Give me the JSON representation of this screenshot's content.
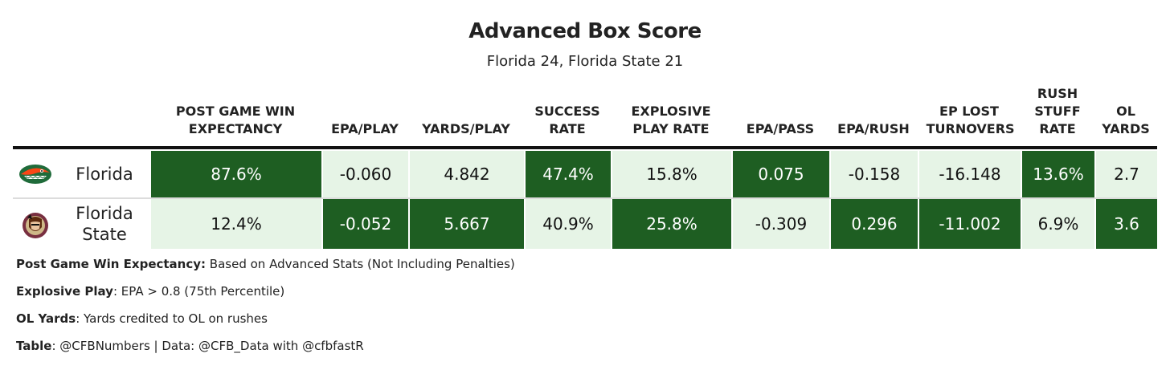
{
  "title": "Advanced Box Score",
  "subtitle": "Florida 24, Florida State 21",
  "colors": {
    "dark_cell": "#1e5e22",
    "light_cell": "#e6f4e6",
    "rule": "#111111"
  },
  "chart_data": {
    "type": "table",
    "columns": [
      "POST GAME WIN EXPECTANCY",
      "EPA/PLAY",
      "YARDS/PLAY",
      "SUCCESS RATE",
      "EXPLOSIVE PLAY RATE",
      "EPA/PASS",
      "EPA/RUSH",
      "EP LOST TURNOVERS",
      "RUSH STUFF RATE",
      "OL YARDS"
    ],
    "rows": [
      {
        "team": "Florida",
        "logo": "florida-gators-logo-icon",
        "values": [
          "87.6%",
          "-0.060",
          "4.842",
          "47.4%",
          "15.8%",
          "0.075",
          "-0.158",
          "-16.148",
          "13.6%",
          "2.7"
        ],
        "highlight": [
          true,
          false,
          false,
          true,
          false,
          true,
          false,
          false,
          true,
          false
        ]
      },
      {
        "team": "Florida State",
        "logo": "florida-state-seminoles-logo-icon",
        "values": [
          "12.4%",
          "-0.052",
          "5.667",
          "40.9%",
          "25.8%",
          "-0.309",
          "0.296",
          "-11.002",
          "6.9%",
          "3.6"
        ],
        "highlight": [
          false,
          true,
          true,
          false,
          true,
          false,
          true,
          true,
          false,
          true
        ]
      }
    ]
  },
  "notes": [
    {
      "label": "Post Game Win Expectancy:",
      "text": " Based on Advanced Stats (Not Including Penalties)"
    },
    {
      "label": "Explosive Play",
      "text": ": EPA > 0.8 (75th Percentile)"
    },
    {
      "label": "OL Yards",
      "text": ": Yards credited to OL on rushes"
    },
    {
      "label": "Table",
      "text": ": @CFBNumbers | Data: @CFB_Data with @cfbfastR"
    }
  ]
}
